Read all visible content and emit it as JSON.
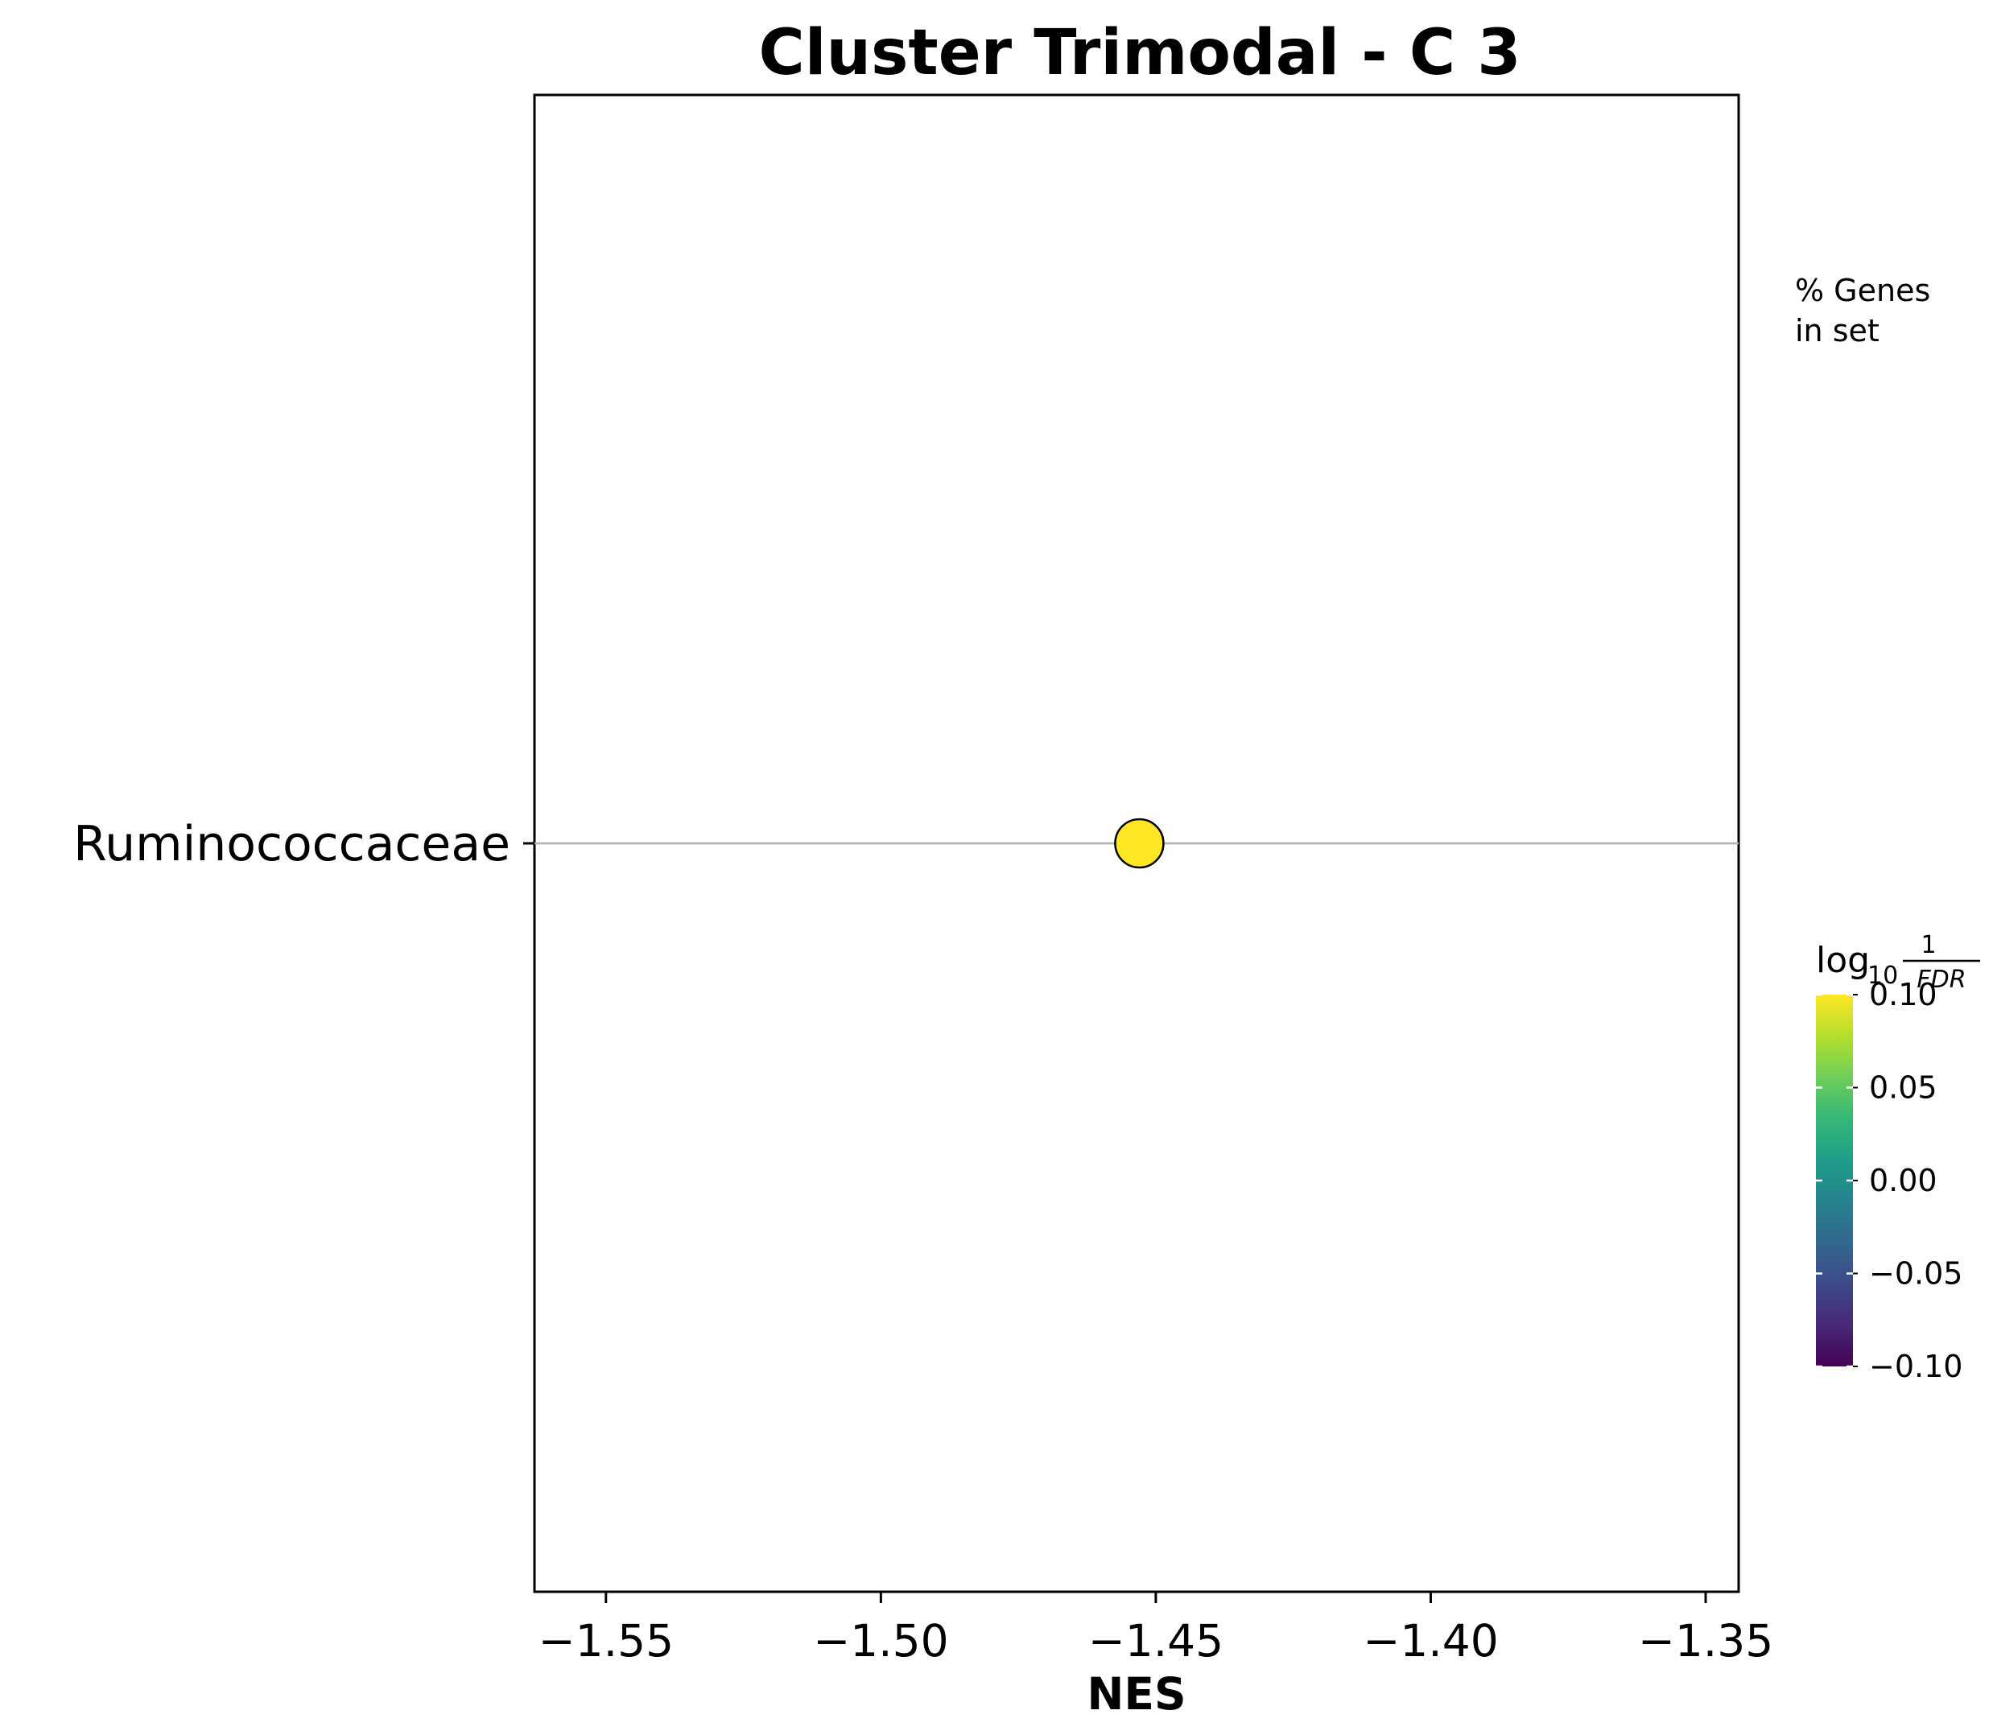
{
  "chart_data": {
    "type": "scatter",
    "title": "Cluster Trimodal - C 3",
    "xlabel": "NES",
    "ylabel": "",
    "xlim": [
      -1.563,
      -1.344
    ],
    "xticks": [
      -1.55,
      -1.5,
      -1.45,
      -1.4,
      -1.35
    ],
    "xtick_labels": [
      "−1.55",
      "−1.50",
      "−1.45",
      "−1.40",
      "−1.35"
    ],
    "categories": [
      "Ruminococcaceae"
    ],
    "points": [
      {
        "category": "Ruminococcaceae",
        "x": -1.453,
        "color_value": 0.1
      }
    ],
    "grid": "horizontal lines at categories",
    "size_legend": {
      "title_line1": "% Genes",
      "title_line2": "in set",
      "placement": "right"
    },
    "colorbar": {
      "colormap": "viridis",
      "title_prefix": "log",
      "title_subscript": "10",
      "title_numerator": "1",
      "title_denominator": "FDR",
      "range": [
        -0.1,
        0.1
      ],
      "ticks": [
        0.1,
        0.05,
        0.0,
        -0.05,
        -0.1
      ],
      "tick_labels": [
        "0.10",
        "0.05",
        "0.00",
        "−0.05",
        "−0.10"
      ],
      "placement": "right"
    }
  },
  "colors": {
    "point_fill": "#fde725",
    "point_edge": "#000000",
    "gridline": "#b0b0b0",
    "viridis": [
      "#440154",
      "#482878",
      "#3e4989",
      "#31688e",
      "#26828e",
      "#1f9e89",
      "#35b779",
      "#6ece58",
      "#b5de2b",
      "#fde725"
    ]
  }
}
